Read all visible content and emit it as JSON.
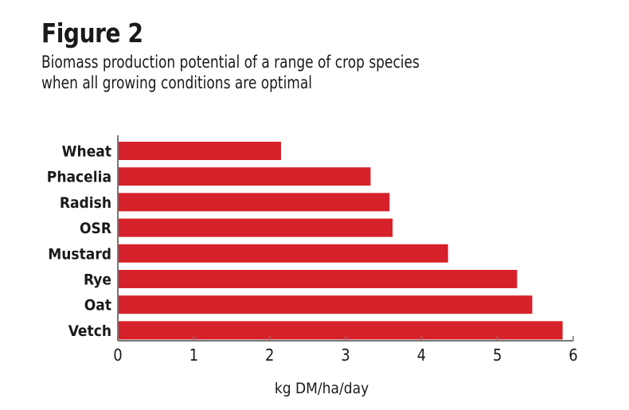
{
  "chart_data": {
    "type": "bar",
    "orientation": "horizontal",
    "title": "Figure 2",
    "subtitle": [
      "Biomass production potential of a range of crop species",
      "when all growing conditions are optimal"
    ],
    "categories": [
      "Wheat",
      "Phacelia",
      "Radish",
      "OSR",
      "Mustard",
      "Rye",
      "Oat",
      "Vetch"
    ],
    "values": [
      2.15,
      3.33,
      3.58,
      3.62,
      4.35,
      5.26,
      5.46,
      5.86
    ],
    "xlabel": "kg DM/ha/day",
    "ylabel": "",
    "xlim": [
      0,
      6
    ],
    "xticks": [
      "0",
      "1",
      "2",
      "3",
      "4",
      "5",
      "6"
    ],
    "grid": false,
    "bar_color": "#d7212a"
  }
}
